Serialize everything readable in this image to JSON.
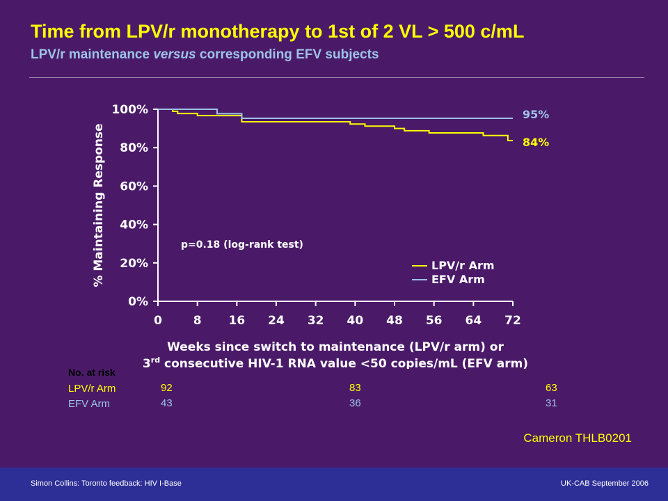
{
  "slide": {
    "title": "Time from LPV/r monotherapy to 1st of 2 VL > 500 c/mL",
    "subtitle_pre": "LPV/r maintenance ",
    "subtitle_em": "versus",
    "subtitle_post": " corresponding EFV subjects",
    "reference": "Cameron THLB0201",
    "footer_left": "Simon Collins: Toronto feedback: HIV I-Base",
    "footer_right": "UK-CAB September 2006"
  },
  "colors": {
    "background": "#4a1a68",
    "lpv": "#ffff00",
    "efv": "#9dc3e6",
    "footer": "#2d2f96"
  },
  "risk_table": {
    "header": "No. at risk",
    "rows": [
      {
        "label": "LPV/r Arm",
        "values": [
          "92",
          "83",
          "63"
        ]
      },
      {
        "label": "EFV Arm",
        "values": [
          "43",
          "36",
          "31"
        ]
      }
    ]
  },
  "chart_data": {
    "type": "line",
    "step": true,
    "title": "",
    "ylabel": "% Maintaining Response",
    "xlabel_line1": "Weeks since switch to maintenance (LPV/r arm) or",
    "xlabel_line2_pre": "3",
    "xlabel_line2_sup": "rd",
    "xlabel_line2_post": " consecutive HIV-1 RNA value <50 copies/mL (EFV arm)",
    "xlim": [
      0,
      72
    ],
    "ylim": [
      0,
      100
    ],
    "xticks": [
      0,
      8,
      16,
      24,
      32,
      40,
      48,
      56,
      64,
      72
    ],
    "yticks": [
      0,
      20,
      40,
      60,
      80,
      100
    ],
    "ytick_labels": [
      "0%",
      "20%",
      "40%",
      "60%",
      "80%",
      "100%"
    ],
    "grid": false,
    "legend": "bottom-right",
    "annotation": "p=0.18 (log-rank test)",
    "series": [
      {
        "name": "LPV/r Arm",
        "color": "#ffff00",
        "end_label": "84%",
        "x": [
          0,
          3,
          4,
          8,
          16,
          17,
          39,
          42,
          48,
          50,
          55,
          66,
          71,
          72
        ],
        "y": [
          100,
          98.9,
          97.8,
          96.7,
          96.7,
          93.5,
          92.3,
          91.2,
          90.0,
          88.8,
          87.7,
          86.3,
          83.7,
          83.7
        ]
      },
      {
        "name": "EFV Arm",
        "color": "#9dc3e6",
        "end_label": "95%",
        "x": [
          0,
          12,
          17,
          72
        ],
        "y": [
          100,
          97.7,
          95.3,
          95.3
        ]
      }
    ]
  }
}
